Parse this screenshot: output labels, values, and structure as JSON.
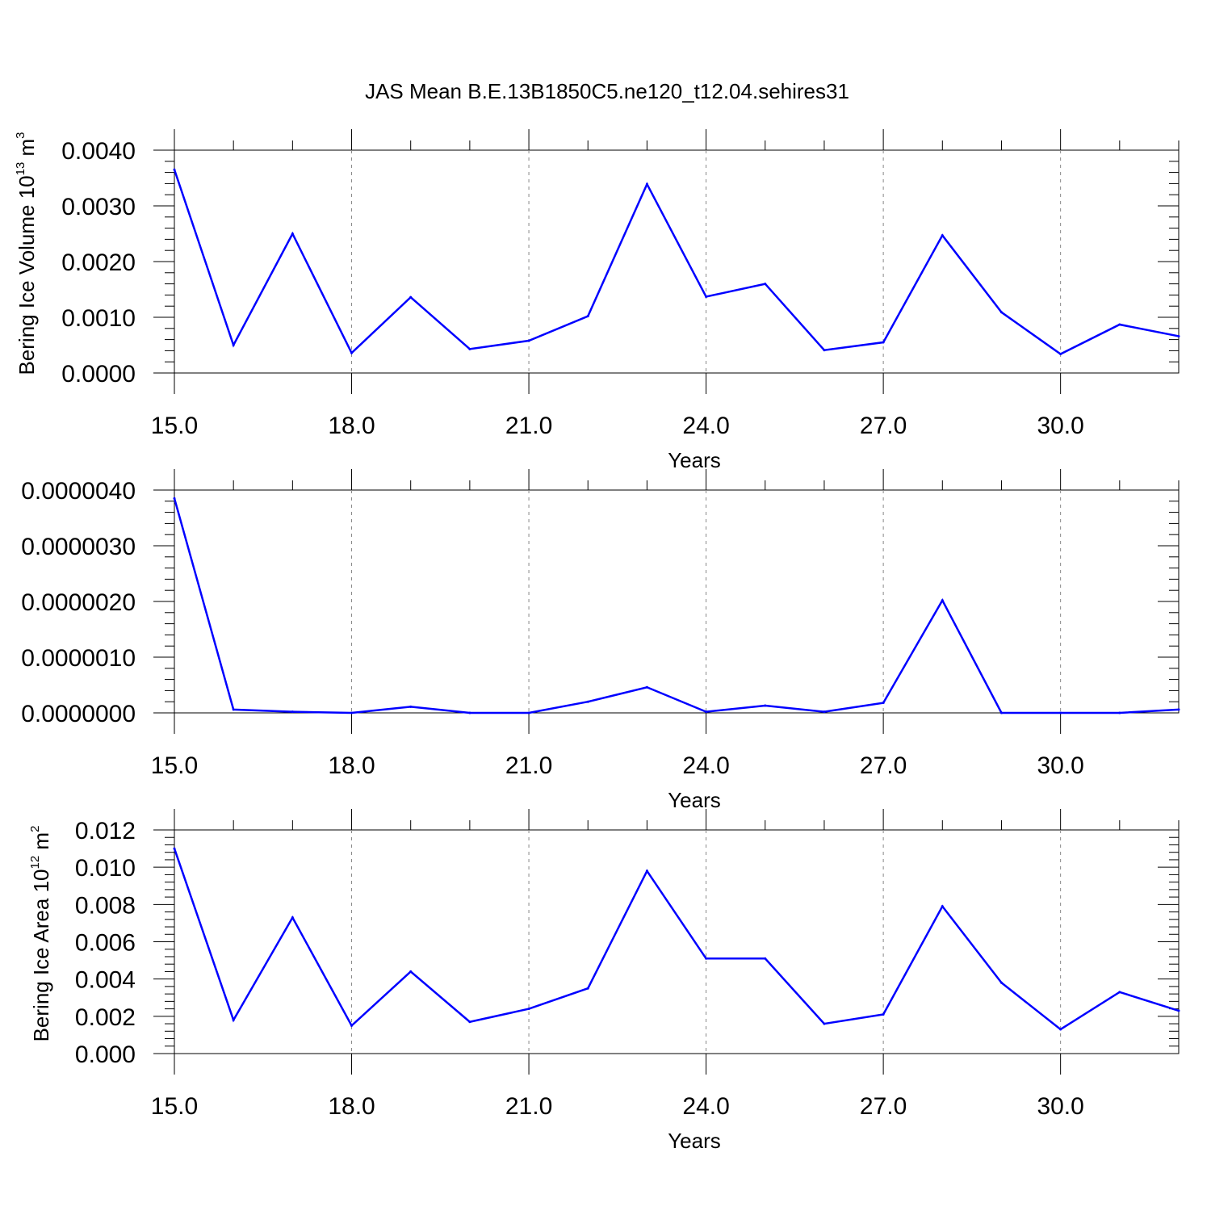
{
  "title": "JAS Mean B.E.13B1850C5.ne120_t12.04.sehires31",
  "series_color": "#0000ff",
  "chart_data": [
    {
      "type": "line",
      "xlabel": "Years",
      "ylabel_text": "Bering Ice Volume 10",
      "ylabel_exp": "13",
      "ylabel_unit": " m",
      "ylabel_unit_exp": "3",
      "xlim": [
        15,
        32
      ],
      "ylim": [
        0,
        0.004
      ],
      "x_ticks": [
        "15.0",
        "18.0",
        "21.0",
        "24.0",
        "27.0",
        "30.0"
      ],
      "y_ticks": [
        "0.0000",
        "0.0010",
        "0.0020",
        "0.0030",
        "0.0040"
      ],
      "grid": "dashed vertical at labeled x ticks",
      "x": [
        15,
        16,
        17,
        18,
        19,
        20,
        21,
        22,
        23,
        24,
        25,
        26,
        27,
        28,
        29,
        30,
        31,
        32
      ],
      "y": [
        0.00365,
        0.0005,
        0.0025,
        0.00036,
        0.00136,
        0.00043,
        0.00058,
        0.00102,
        0.00339,
        0.00137,
        0.0016,
        0.00041,
        0.00055,
        0.00247,
        0.00109,
        0.00034,
        0.00087,
        0.00066
      ]
    },
    {
      "type": "line",
      "xlabel": "Years",
      "ylabel_text": "",
      "ylabel_exp": "",
      "ylabel_unit": "",
      "ylabel_unit_exp": "",
      "xlim": [
        15,
        32
      ],
      "ylim": [
        0,
        4e-06
      ],
      "x_ticks": [
        "15.0",
        "18.0",
        "21.0",
        "24.0",
        "27.0",
        "30.0"
      ],
      "y_ticks": [
        "0.0000000",
        "0.0000010",
        "0.0000020",
        "0.0000030",
        "0.0000040"
      ],
      "grid": "dashed vertical at labeled x ticks",
      "x": [
        15,
        16,
        17,
        18,
        19,
        20,
        21,
        22,
        23,
        24,
        25,
        26,
        27,
        28,
        29,
        30,
        31,
        32
      ],
      "y": [
        3.85e-06,
        6e-08,
        2e-08,
        0.0,
        1.1e-07,
        0.0,
        0.0,
        2e-07,
        4.6e-07,
        2e-08,
        1.3e-07,
        2e-08,
        1.8e-07,
        2.02e-06,
        0.0,
        0.0,
        0.0,
        6e-08
      ]
    },
    {
      "type": "line",
      "xlabel": "Years",
      "ylabel_text": "Bering Ice Area 10",
      "ylabel_exp": "12",
      "ylabel_unit": " m",
      "ylabel_unit_exp": "2",
      "xlim": [
        15,
        32
      ],
      "ylim": [
        0,
        0.012
      ],
      "x_ticks": [
        "15.0",
        "18.0",
        "21.0",
        "24.0",
        "27.0",
        "30.0"
      ],
      "y_ticks": [
        "0.000",
        "0.002",
        "0.004",
        "0.006",
        "0.008",
        "0.010",
        "0.012"
      ],
      "grid": "dashed vertical at labeled x ticks",
      "x": [
        15,
        16,
        17,
        18,
        19,
        20,
        21,
        22,
        23,
        24,
        25,
        26,
        27,
        28,
        29,
        30,
        31,
        32
      ],
      "y": [
        0.011,
        0.0018,
        0.0073,
        0.0015,
        0.0044,
        0.0017,
        0.0024,
        0.0035,
        0.0098,
        0.0051,
        0.0051,
        0.0016,
        0.0021,
        0.0079,
        0.0038,
        0.0013,
        0.0033,
        0.0023
      ]
    }
  ]
}
